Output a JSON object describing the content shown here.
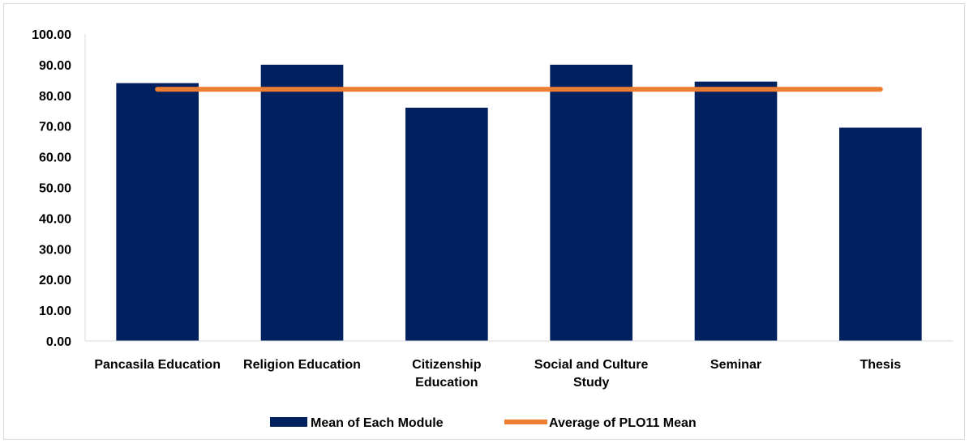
{
  "chart_data": {
    "type": "bar",
    "categories": [
      [
        "Pancasila Education"
      ],
      [
        "Religion Education"
      ],
      [
        "Citizenship",
        "Education"
      ],
      [
        "Social and Culture",
        "Study"
      ],
      [
        "Seminar"
      ],
      [
        "Thesis"
      ]
    ],
    "series": [
      {
        "name": "Mean of Each Module",
        "type": "bar",
        "values": [
          84.0,
          90.0,
          76.0,
          90.0,
          84.5,
          69.5
        ],
        "color": "#002060"
      },
      {
        "name": "Average of PLO11 Mean",
        "type": "line",
        "values": [
          82.0,
          82.0,
          82.0,
          82.0,
          82.0,
          82.0
        ],
        "color": "#ed7d31"
      }
    ],
    "ylim": [
      0,
      100
    ],
    "yticks": [
      0,
      10,
      20,
      30,
      40,
      50,
      60,
      70,
      80,
      90,
      100
    ],
    "ytick_format": "0.00",
    "legend_placement": "bottom",
    "grid": false,
    "title": "",
    "xlabel": "",
    "ylabel": ""
  }
}
